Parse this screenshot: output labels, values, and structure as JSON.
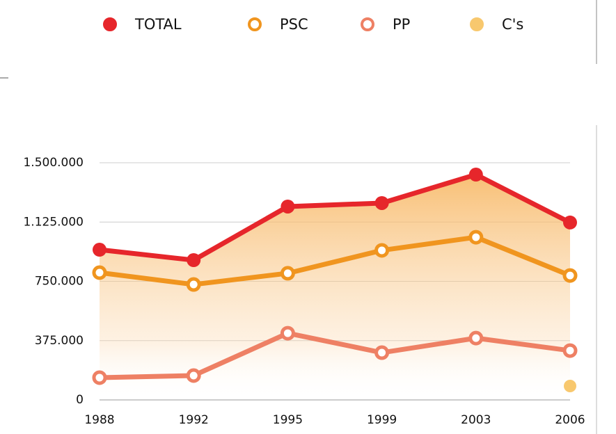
{
  "chart_data": {
    "type": "line",
    "categories": [
      "1988",
      "1992",
      "1995",
      "1999",
      "2003",
      "2006"
    ],
    "series": [
      {
        "name": "TOTAL",
        "color": "#e6262b",
        "filled": true,
        "values": [
          950000,
          884000,
          1223000,
          1245000,
          1425000,
          1122000
        ]
      },
      {
        "name": "PSC",
        "color": "#f0951f",
        "filled": false,
        "values": [
          805000,
          730000,
          801000,
          946000,
          1029000,
          787000
        ]
      },
      {
        "name": "PP",
        "color": "#ee8064",
        "filled": false,
        "values": [
          141000,
          154000,
          422000,
          299000,
          391000,
          312000
        ]
      },
      {
        "name": "C's",
        "color": "#f8c86e",
        "filled": true,
        "values": [
          null,
          null,
          null,
          null,
          null,
          88000
        ]
      }
    ],
    "ylim": [
      0,
      1500000
    ],
    "yticks": [
      0,
      {
        "value": 375000,
        "label": "375.000"
      },
      {
        "value": 750000,
        "label": "750.000"
      },
      {
        "value": 1125000,
        "label": "1.125.000"
      },
      {
        "value": 1500000,
        "label": "1.500.000"
      }
    ],
    "grid": true,
    "legend": "top",
    "area_under": "TOTAL"
  }
}
